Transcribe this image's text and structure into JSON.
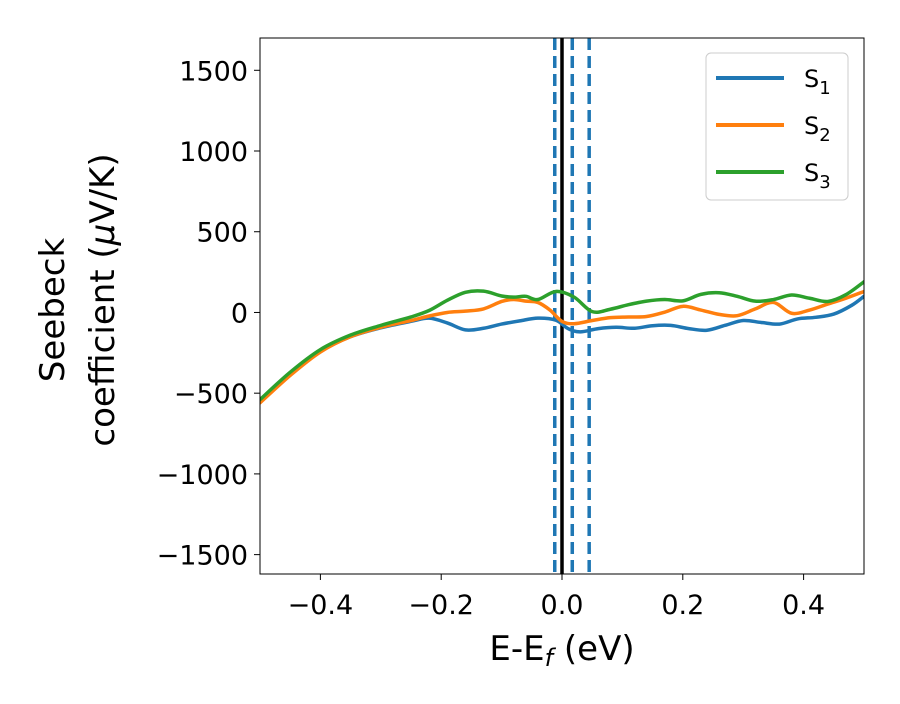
{
  "chart_data": {
    "type": "line",
    "title": "",
    "xlabel_main": "E-E",
    "xlabel_sub": "f",
    "xlabel_unit": " (eV)",
    "ylabel_line1": "Seebeck",
    "ylabel_line2_prefix": "coefficient  (",
    "ylabel_mu": "μ",
    "ylabel_line2_suffix": "V/K)",
    "xlim": [
      -0.5,
      0.5
    ],
    "ylim": [
      -1620,
      1700
    ],
    "xticks": [
      -0.4,
      -0.2,
      0.0,
      0.2,
      0.4
    ],
    "xtick_labels": [
      "−0.4",
      "−0.2",
      "0.0",
      "0.2",
      "0.4"
    ],
    "yticks": [
      -1500,
      -1000,
      -500,
      0,
      500,
      1000,
      1500
    ],
    "ytick_labels": [
      "−1500",
      "−1000",
      "−500",
      "0",
      "500",
      "1000",
      "1500"
    ],
    "grid": false,
    "legend_position": "top-right",
    "colors": {
      "S1": "#1f77b4",
      "S2": "#ff7f0e",
      "S3": "#2ca02c",
      "fermi": "#000000",
      "dashed": "#1f77b4"
    },
    "vertical_lines": {
      "solid": [
        0.0
      ],
      "dashed": [
        -0.012,
        0.017,
        0.045
      ]
    },
    "series": [
      {
        "name": "S",
        "sub": "1",
        "color": "#1f77b4",
        "points": [
          [
            -0.5,
            -550
          ],
          [
            -0.45,
            -380
          ],
          [
            -0.4,
            -240
          ],
          [
            -0.35,
            -150
          ],
          [
            -0.3,
            -95
          ],
          [
            -0.25,
            -55
          ],
          [
            -0.22,
            -35
          ],
          [
            -0.19,
            -65
          ],
          [
            -0.16,
            -108
          ],
          [
            -0.13,
            -98
          ],
          [
            -0.1,
            -72
          ],
          [
            -0.07,
            -52
          ],
          [
            -0.04,
            -35
          ],
          [
            -0.01,
            -48
          ],
          [
            0.01,
            -100
          ],
          [
            0.03,
            -120
          ],
          [
            0.06,
            -100
          ],
          [
            0.09,
            -92
          ],
          [
            0.12,
            -98
          ],
          [
            0.15,
            -82
          ],
          [
            0.18,
            -80
          ],
          [
            0.21,
            -100
          ],
          [
            0.24,
            -110
          ],
          [
            0.27,
            -80
          ],
          [
            0.3,
            -50
          ],
          [
            0.33,
            -62
          ],
          [
            0.36,
            -72
          ],
          [
            0.39,
            -40
          ],
          [
            0.42,
            -30
          ],
          [
            0.45,
            -10
          ],
          [
            0.48,
            45
          ],
          [
            0.5,
            100
          ]
        ]
      },
      {
        "name": "S",
        "sub": "2",
        "color": "#ff7f0e",
        "points": [
          [
            -0.5,
            -560
          ],
          [
            -0.45,
            -390
          ],
          [
            -0.4,
            -245
          ],
          [
            -0.35,
            -150
          ],
          [
            -0.3,
            -92
          ],
          [
            -0.25,
            -50
          ],
          [
            -0.22,
            -22
          ],
          [
            -0.19,
            0
          ],
          [
            -0.16,
            8
          ],
          [
            -0.13,
            22
          ],
          [
            -0.1,
            68
          ],
          [
            -0.08,
            80
          ],
          [
            -0.06,
            70
          ],
          [
            -0.04,
            62
          ],
          [
            -0.02,
            15
          ],
          [
            0.0,
            -55
          ],
          [
            0.02,
            -70
          ],
          [
            0.05,
            -50
          ],
          [
            0.08,
            -32
          ],
          [
            0.11,
            -28
          ],
          [
            0.14,
            -25
          ],
          [
            0.17,
            2
          ],
          [
            0.2,
            38
          ],
          [
            0.23,
            15
          ],
          [
            0.26,
            -12
          ],
          [
            0.29,
            -20
          ],
          [
            0.32,
            22
          ],
          [
            0.35,
            62
          ],
          [
            0.38,
            -5
          ],
          [
            0.41,
            15
          ],
          [
            0.44,
            52
          ],
          [
            0.47,
            88
          ],
          [
            0.5,
            130
          ]
        ]
      },
      {
        "name": "S",
        "sub": "3",
        "color": "#2ca02c",
        "points": [
          [
            -0.5,
            -540
          ],
          [
            -0.45,
            -370
          ],
          [
            -0.4,
            -230
          ],
          [
            -0.35,
            -140
          ],
          [
            -0.3,
            -80
          ],
          [
            -0.25,
            -28
          ],
          [
            -0.22,
            12
          ],
          [
            -0.19,
            75
          ],
          [
            -0.16,
            125
          ],
          [
            -0.13,
            132
          ],
          [
            -0.1,
            102
          ],
          [
            -0.08,
            95
          ],
          [
            -0.06,
            100
          ],
          [
            -0.04,
            80
          ],
          [
            -0.01,
            130
          ],
          [
            0.02,
            95
          ],
          [
            0.05,
            5
          ],
          [
            0.08,
            20
          ],
          [
            0.11,
            48
          ],
          [
            0.14,
            70
          ],
          [
            0.17,
            80
          ],
          [
            0.2,
            72
          ],
          [
            0.23,
            112
          ],
          [
            0.26,
            122
          ],
          [
            0.29,
            100
          ],
          [
            0.32,
            70
          ],
          [
            0.35,
            80
          ],
          [
            0.38,
            108
          ],
          [
            0.41,
            88
          ],
          [
            0.44,
            68
          ],
          [
            0.47,
            110
          ],
          [
            0.5,
            190
          ]
        ]
      }
    ]
  }
}
